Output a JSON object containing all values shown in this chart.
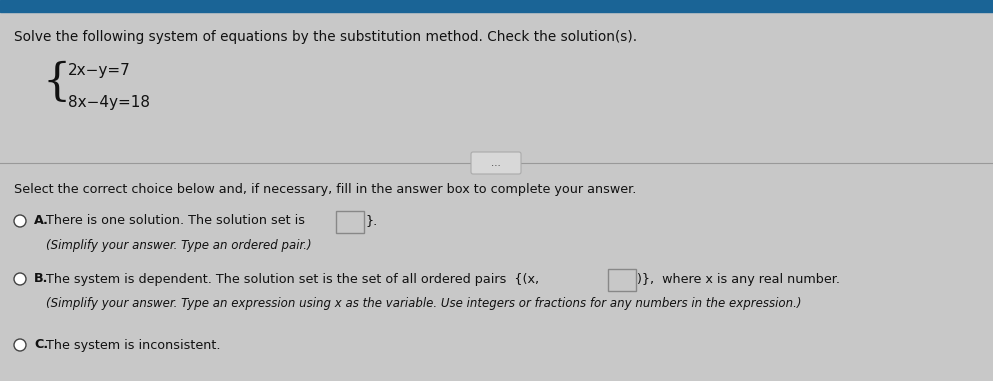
{
  "bg_color": "#c8c8c8",
  "top_bar_color": "#1a6496",
  "panel_color": "#dcdcdc",
  "title_text": "Solve the following system of equations by the substitution method. Check the solution(s).",
  "eq1": "2x−y=7",
  "eq2": "8x−4y=18",
  "select_text": "Select the correct choice below and, if necessary, fill in the answer box to complete your answer.",
  "optA_main": "There is one solution. The solution set is ",
  "optA_sub": "(Simplify your answer. Type an ordered pair.)",
  "optB_main1": "The system is dependent. The solution set is the set of all ordered pairs  {(x,",
  "optB_main2": ")},  where x is any real number.",
  "optB_sub": "(Simplify your answer. Type an expression using x as the variable. Use integers or fractions for any numbers in the expression.)",
  "optC_main": "The system is inconsistent.",
  "font_size_title": 9.8,
  "font_size_body": 9.2,
  "font_size_eq": 11.0,
  "font_size_sub": 8.5,
  "text_color": "#111111",
  "bold_color": "#000000",
  "circle_color": "#444444",
  "box_edge_color": "#888888",
  "box_face_color": "#c8c8c8",
  "line_color": "#999999",
  "btn_color": "#d8d8d8",
  "btn_edge": "#aaaaaa"
}
